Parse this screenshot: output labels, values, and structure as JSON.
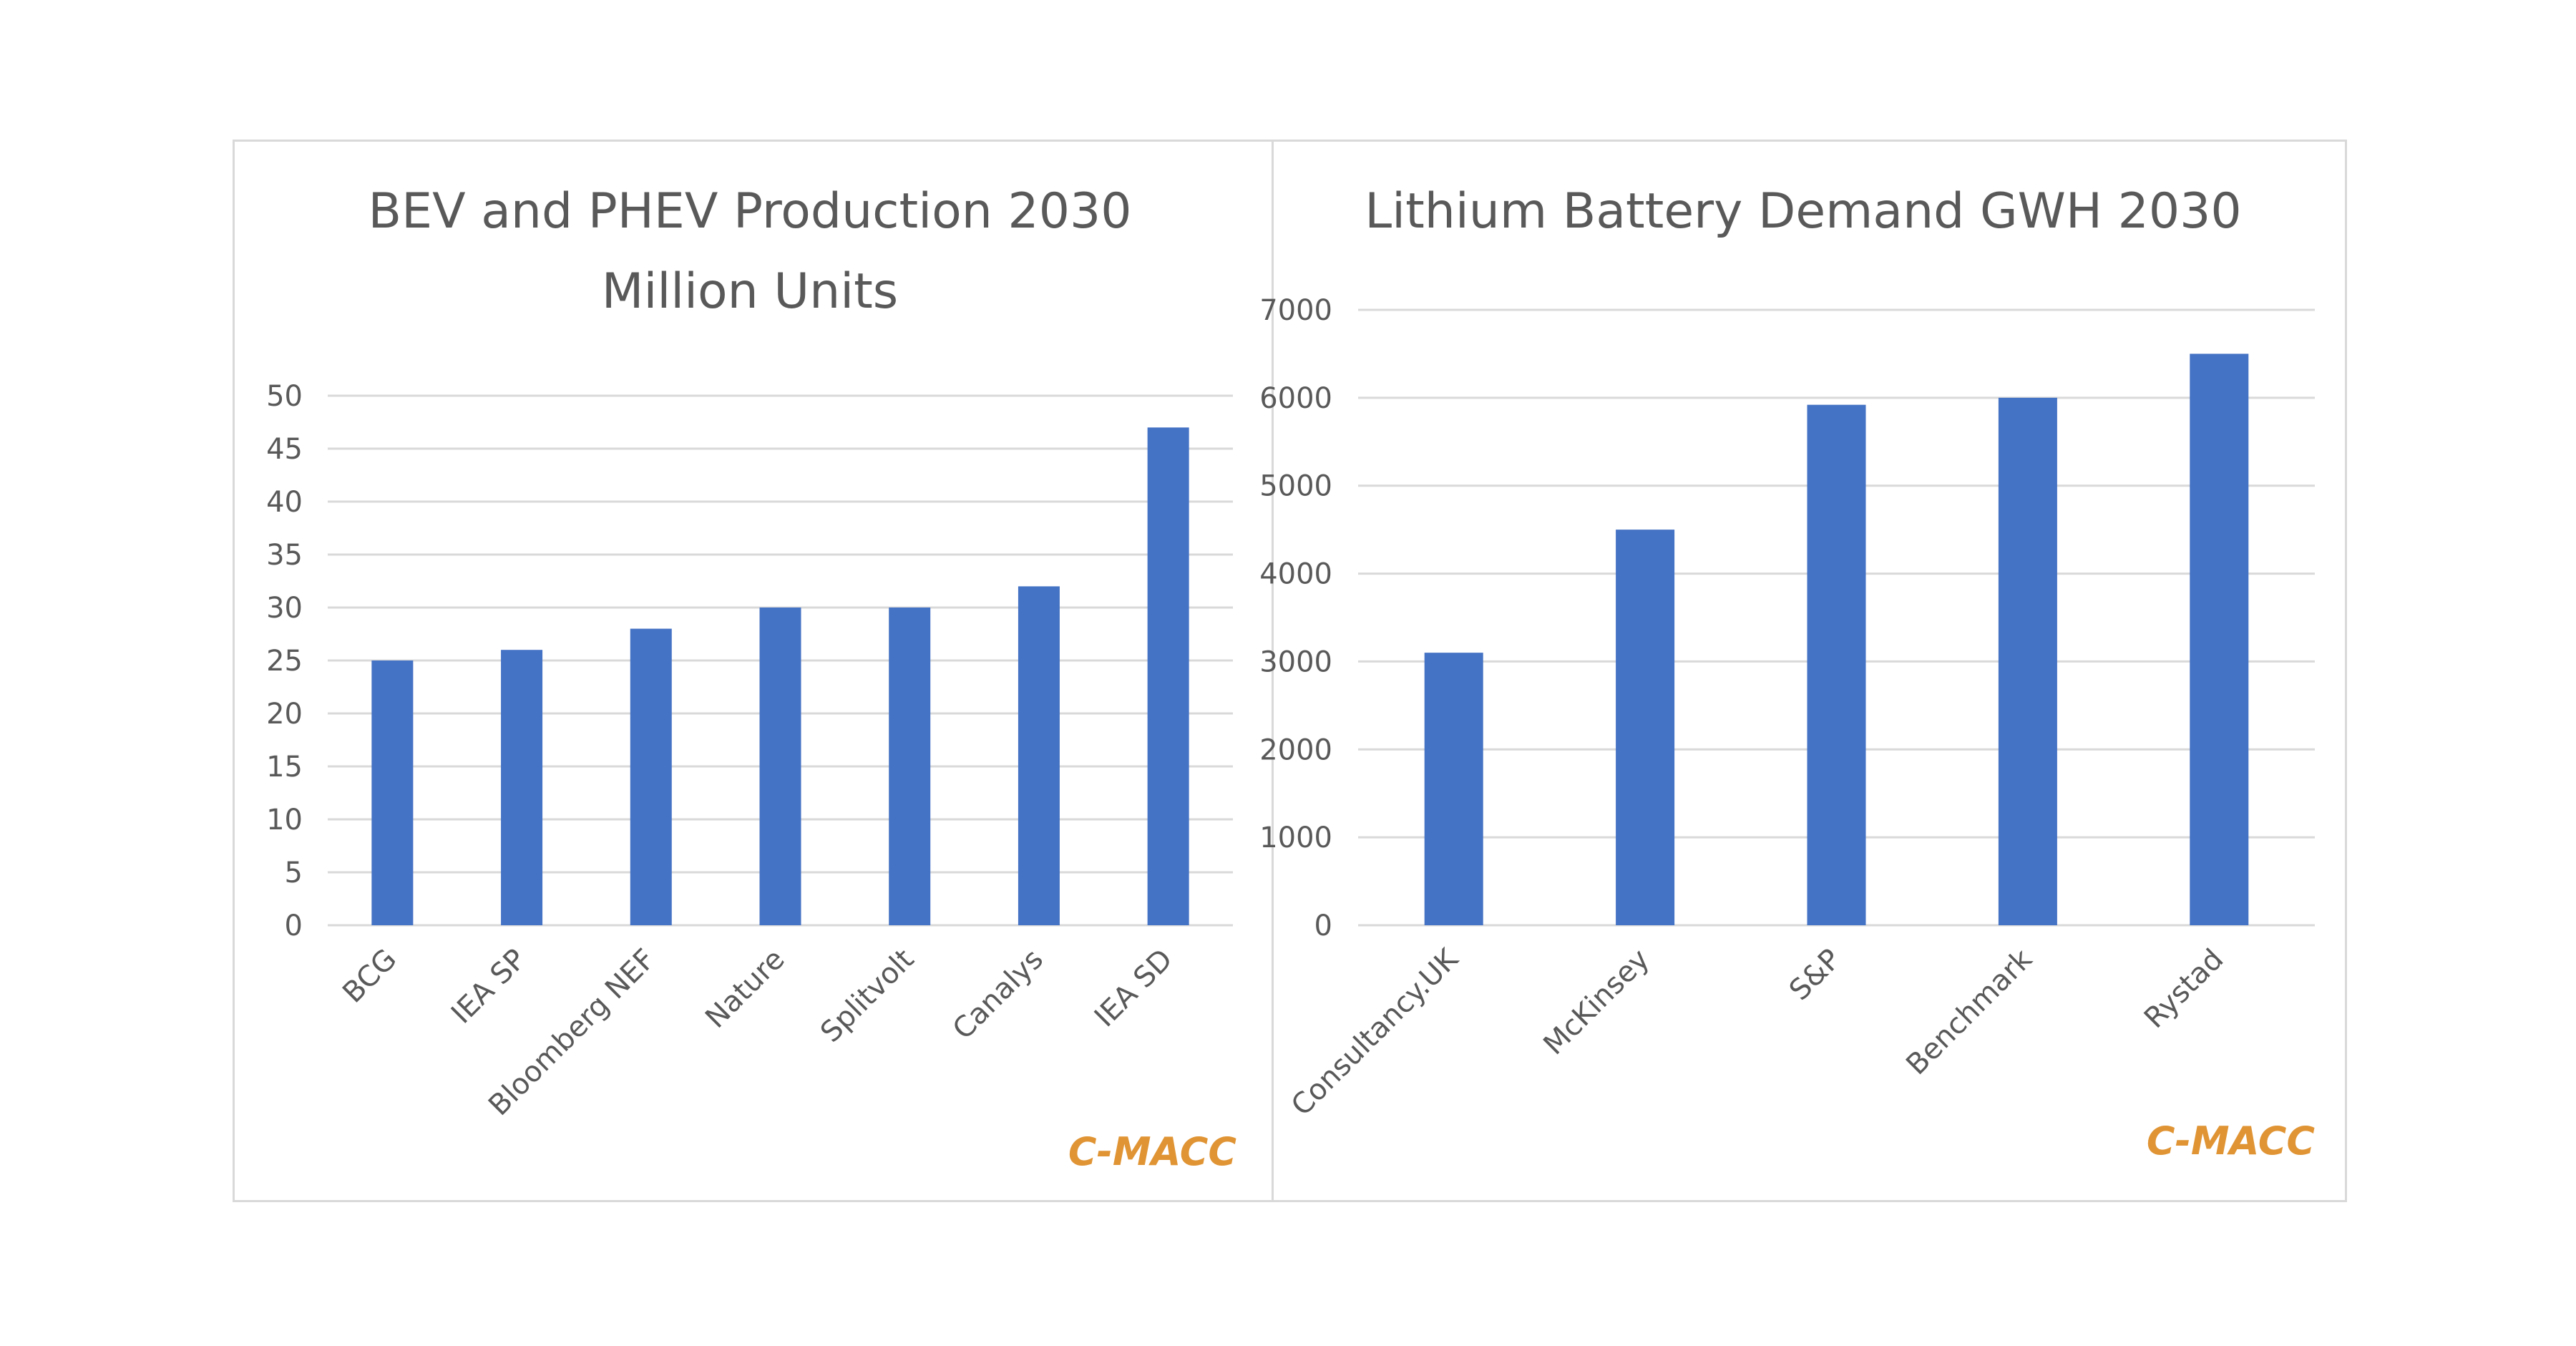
{
  "colors": {
    "bar": "#4472c4",
    "grid": "#d9d9d9",
    "text": "#595959",
    "watermark": "#e09434",
    "border": "#d9d9d9"
  },
  "chart_data": [
    {
      "type": "bar",
      "title_lines": [
        "BEV and PHEV Production 2030",
        "Million Units"
      ],
      "categories": [
        "BCG",
        "IEA SP",
        "Bloomberg NEF",
        "Nature",
        "Splitvolt",
        "Canalys",
        "IEA SD"
      ],
      "values": [
        25,
        26,
        28,
        30,
        30,
        32,
        47
      ],
      "yticks": [
        "0",
        "5",
        "10",
        "15",
        "20",
        "25",
        "30",
        "35",
        "40",
        "45",
        "50"
      ],
      "ylim": [
        0,
        50
      ],
      "xlabel": "",
      "ylabel": "",
      "grid": true,
      "watermark": "C-MACC"
    },
    {
      "type": "bar",
      "title_lines": [
        "Lithium Battery Demand  GWH 2030"
      ],
      "categories": [
        "Consultancy.UK",
        "McKinsey",
        "S&P",
        "Benchmark",
        "Rystad"
      ],
      "values": [
        3100,
        4500,
        5920,
        6000,
        6500
      ],
      "yticks": [
        "0",
        "1000",
        "2000",
        "3000",
        "4000",
        "5000",
        "6000",
        "7000"
      ],
      "ylim": [
        0,
        7000
      ],
      "xlabel": "",
      "ylabel": "",
      "grid": true,
      "watermark": "C-MACC"
    }
  ]
}
